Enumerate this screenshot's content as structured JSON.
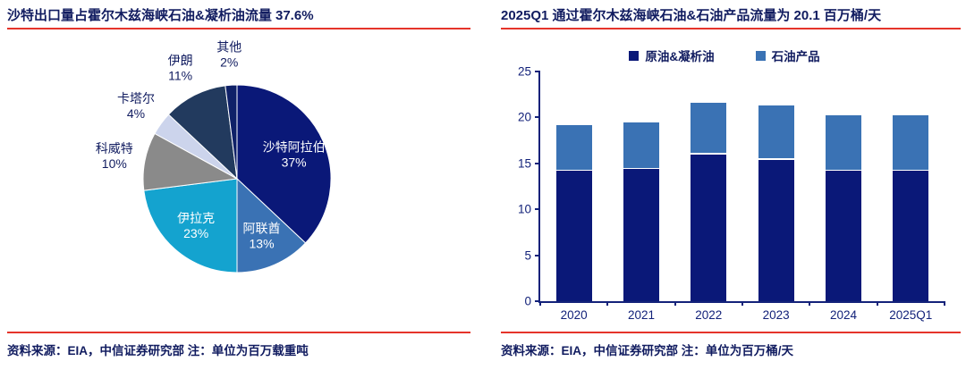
{
  "left_panel": {
    "title": "沙特出口量占霍尔木兹海峡石油&凝析油流量 37.6%",
    "source": "资料来源：EIA，中信证券研究部 注：单位为百万载重吨"
  },
  "right_panel": {
    "title": "2025Q1 通过霍尔木兹海峡石油&石油产品流量为 20.1 百万桶/天",
    "source": "资料来源：EIA，中信证券研究部 注：单位为百万桶/天"
  },
  "colors": {
    "title_navy": "#111c60",
    "axis_navy": "#13227a",
    "text_dark": "#111c60",
    "rule_red": "#e5342a",
    "bar_navy": "#0a1878",
    "bar_blue": "#3a72b4"
  },
  "chart_data": [
    {
      "type": "pie",
      "title": "沙特出口量占霍尔木兹海峡石油&凝析油流量 37.6%",
      "unit_note": "单位为百万载重吨",
      "direction": "clockwise",
      "start_angle": "12-oclock",
      "slices": [
        {
          "label": "沙特阿拉伯",
          "value": 37,
          "pct_label": "37%",
          "color": "#0a1878",
          "label_inside": true
        },
        {
          "label": "阿联酋",
          "value": 13,
          "pct_label": "13%",
          "color": "#3a72b4",
          "label_inside": true
        },
        {
          "label": "伊拉克",
          "value": 23,
          "pct_label": "23%",
          "color": "#14a3cf",
          "label_inside": true
        },
        {
          "label": "科威特",
          "value": 10,
          "pct_label": "10%",
          "color": "#8a8a8a",
          "label_inside": false
        },
        {
          "label": "卡塔尔",
          "value": 4,
          "pct_label": "4%",
          "color": "#ccd4ec",
          "label_inside": false
        },
        {
          "label": "伊朗",
          "value": 11,
          "pct_label": "11%",
          "color": "#223a5e",
          "label_inside": false
        },
        {
          "label": "其他",
          "value": 2,
          "pct_label": "2%",
          "color": "#0f2168",
          "label_inside": false
        }
      ]
    },
    {
      "type": "bar",
      "stacked": true,
      "title": "2025Q1 通过霍尔木兹海峡石油&石油产品流量为 20.1 百万桶/天",
      "unit_note": "单位为百万桶/天",
      "categories": [
        "2020",
        "2021",
        "2022",
        "2023",
        "2024",
        "2025Q1"
      ],
      "series": [
        {
          "name": "原油&凝析油",
          "color": "#0a1878",
          "values": [
            14.2,
            14.4,
            16.0,
            15.4,
            14.2,
            14.2
          ]
        },
        {
          "name": "石油产品",
          "color": "#3a72b4",
          "values": [
            4.8,
            4.9,
            5.5,
            5.8,
            5.9,
            5.9
          ]
        }
      ],
      "totals": [
        19.0,
        19.3,
        21.5,
        21.2,
        20.1,
        20.1
      ],
      "ylim": [
        0,
        25
      ],
      "yticks": [
        0,
        5,
        10,
        15,
        20,
        25
      ],
      "legend_position": "top",
      "grid": false
    }
  ]
}
